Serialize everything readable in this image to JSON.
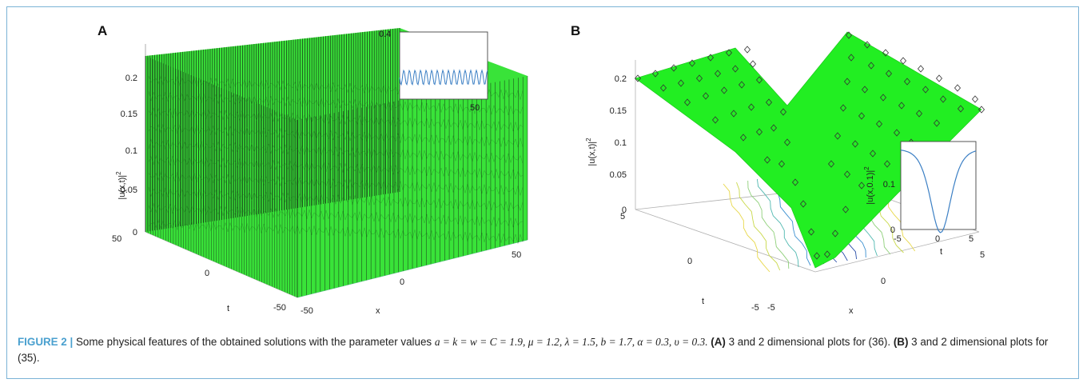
{
  "panels": [
    {
      "letter": "A",
      "zlabel": "|u(x,t)|",
      "zlabel_sup": "2",
      "xlabel": "x",
      "ylabel": "t",
      "zticks": [
        "0",
        "0.05",
        "0.1",
        "0.15",
        "0.2"
      ],
      "xticks": [
        "-50",
        "0",
        "50"
      ],
      "yticks": [
        "-50",
        "0",
        "50"
      ],
      "inset_ytick": "0.4",
      "inset_xtick": "50",
      "colors": {
        "surface": "#39e339",
        "lines": "#111111",
        "inset": "#3b7fc4"
      }
    },
    {
      "letter": "B",
      "zlabel": "|u(x,t)|",
      "zlabel_sup": "2",
      "xlabel": "x",
      "ylabel": "t",
      "zticks": [
        "0",
        "0.05",
        "0.1",
        "0.15",
        "0.2"
      ],
      "xticks": [
        "-5",
        "0",
        "5"
      ],
      "yticks": [
        "-5",
        "0",
        "5"
      ],
      "inset": {
        "ylabel": "|u(x,0.1)|",
        "ylabel_sup": "2",
        "xlabel": "t",
        "yticks": [
          "0",
          "0.1"
        ],
        "xticks": [
          "-5",
          "0",
          "5"
        ]
      },
      "colors": {
        "surface": "#22ee22",
        "inset": "#3b7fc4"
      }
    }
  ],
  "caption": {
    "lead": "FIGURE 2 |",
    "text": "Some physical features of the obtained solutions with the parameter values",
    "params": "a = k = w = C = 1.9, μ = 1.2, λ = 1.5, b = 1.7, α = 0.3, υ = 0.3.",
    "ref_a": "(A)",
    "text_a": "3 and 2 dimensional plots for (36).",
    "ref_b": "(B)",
    "text_b": "3 and 2 dimensional plots for (35)."
  }
}
